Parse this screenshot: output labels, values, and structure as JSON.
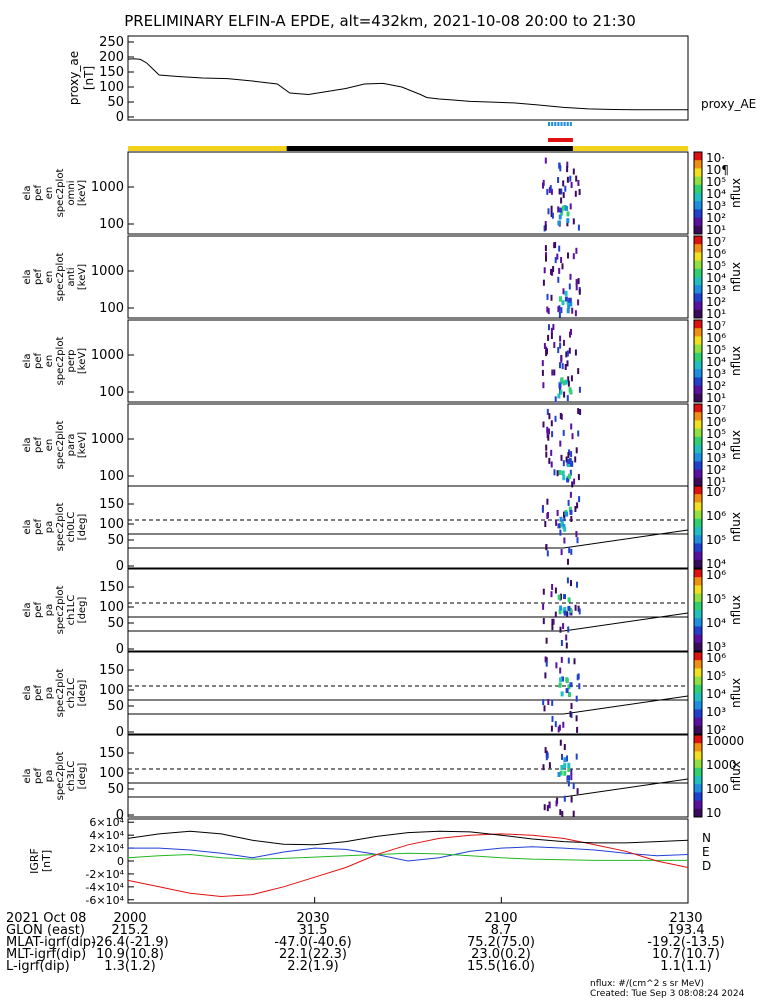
{
  "title": "PRELIMINARY ELFIN-A EPDE, alt=432km, 2021-10-08 20:00 to 21:30",
  "colors": {
    "ae_line": "#000000",
    "status_yellow": "#f2d21b",
    "status_black": "#000000",
    "bar_blue": "#1e8fe0",
    "bar_red": "#e01010",
    "N": "#1f3fd6",
    "E": "#22b822",
    "D": "#e01010",
    "total": "#000000"
  },
  "chart_data": [
    {
      "type": "line",
      "panel": "proxy_ae",
      "ylabel": [
        "proxy_ae",
        "[nT]"
      ],
      "yticks": [
        "0",
        "50",
        "100",
        "150",
        "200",
        "250"
      ],
      "ylim": [
        -10,
        270
      ],
      "legend": "proxy_AE",
      "x": [
        0,
        1,
        2,
        3,
        5,
        8,
        12,
        16,
        20,
        24,
        26,
        29,
        32,
        35,
        38,
        41,
        44,
        47,
        48,
        50,
        52,
        55,
        58,
        62,
        66,
        70,
        74,
        78,
        82,
        86,
        90
      ],
      "values": [
        193,
        194,
        192,
        180,
        140,
        135,
        130,
        128,
        120,
        110,
        80,
        75,
        85,
        95,
        110,
        112,
        100,
        75,
        65,
        60,
        57,
        52,
        50,
        47,
        40,
        32,
        27,
        25,
        24,
        24,
        24
      ]
    },
    {
      "type": "timeline",
      "panel": "status_bars",
      "blue_interval": [
        [
          67.5,
          71.5
        ]
      ],
      "red_interval": [
        [
          67.5,
          71.5
        ]
      ],
      "yellow_intervals": [
        [
          0,
          25.5
        ],
        [
          71.5,
          90
        ]
      ],
      "black_intervals": [
        [
          25.5,
          71.5
        ]
      ]
    },
    {
      "type": "heatmap",
      "panel": "omni",
      "ylabel": [
        "ela",
        "pef",
        "en",
        "spec2plot",
        "omni",
        "[keV]"
      ],
      "yticks": [
        "100",
        "1000"
      ],
      "colorbar": {
        "label": "nflux",
        "ticks": [
          "10·",
          "10¶",
          "10⁵",
          "10⁴",
          "10³",
          "10²",
          "10¹"
        ],
        "tick_exponents": [
          7,
          6,
          5,
          4,
          3,
          2,
          1
        ]
      }
    },
    {
      "type": "heatmap",
      "panel": "anti",
      "ylabel": [
        "ela",
        "pef",
        "en",
        "spec2plot",
        "anti",
        "[keV]"
      ],
      "yticks": [
        "100",
        "1000"
      ],
      "colorbar": {
        "label": "nflux",
        "tick_exponents": [
          7,
          6,
          5,
          4,
          3,
          2,
          1
        ]
      }
    },
    {
      "type": "heatmap",
      "panel": "perp",
      "ylabel": [
        "ela",
        "pef",
        "en",
        "spec2plot",
        "perp",
        "[keV]"
      ],
      "yticks": [
        "100",
        "1000"
      ],
      "colorbar": {
        "label": "nflux",
        "tick_exponents": [
          7,
          6,
          5,
          4,
          3,
          2,
          1
        ]
      }
    },
    {
      "type": "heatmap",
      "panel": "para",
      "ylabel": [
        "ela",
        "pef",
        "en",
        "spec2plot",
        "para",
        "[keV]"
      ],
      "yticks": [
        "100",
        "1000"
      ],
      "colorbar": {
        "label": "nflux",
        "tick_exponents": [
          7,
          6,
          5,
          4,
          3,
          2,
          1
        ]
      }
    },
    {
      "type": "heatmap",
      "panel": "ch0LC",
      "ylabel": [
        "ela",
        "pef",
        "pa",
        "spec2plot",
        "ch0LC",
        "[deg]"
      ],
      "yticks": [
        "0",
        "50",
        "100",
        "150"
      ],
      "colorbar": {
        "label": "nflux",
        "tick_exponents": [
          7,
          6,
          5,
          4
        ]
      }
    },
    {
      "type": "heatmap",
      "panel": "ch1LC",
      "ylabel": [
        "ela",
        "pef",
        "pa",
        "spec2plot",
        "ch1LC",
        "[deg]"
      ],
      "yticks": [
        "0",
        "50",
        "100",
        "150"
      ],
      "colorbar": {
        "label": "nflux",
        "tick_exponents": [
          6,
          5,
          4,
          3
        ]
      }
    },
    {
      "type": "heatmap",
      "panel": "ch2LC",
      "ylabel": [
        "ela",
        "pef",
        "pa",
        "spec2plot",
        "ch2LC",
        "[deg]"
      ],
      "yticks": [
        "0",
        "50",
        "100",
        "150"
      ],
      "colorbar": {
        "label": "nflux",
        "tick_exponents": [
          6,
          5,
          4,
          3,
          2
        ]
      }
    },
    {
      "type": "heatmap",
      "panel": "ch3LC",
      "ylabel": [
        "ela",
        "pef",
        "pa",
        "spec2plot",
        "ch3LC",
        "[deg]"
      ],
      "yticks": [
        "0",
        "50",
        "100",
        "150"
      ],
      "colorbar": {
        "label": "nflux",
        "ticks": [
          "10000",
          "1000",
          "100",
          "10"
        ]
      }
    },
    {
      "type": "line",
      "panel": "IGRF",
      "ylabel": [
        "IGRF",
        "[nT]"
      ],
      "yticks": [
        "6×10⁴",
        "4×10⁴",
        "2×10⁴",
        "0",
        "-2×10⁴",
        "-4×10⁴",
        "-6×10⁴"
      ],
      "ylim": [
        -65000,
        65000
      ],
      "legend": [
        "N",
        "E",
        "D"
      ],
      "x": [
        0,
        5,
        10,
        15,
        20,
        25,
        30,
        35,
        40,
        45,
        50,
        55,
        60,
        65,
        70,
        75,
        80,
        85,
        90
      ],
      "series": [
        {
          "name": "N",
          "values": [
            20000,
            20000,
            17000,
            12000,
            5000,
            14000,
            20000,
            18000,
            10000,
            0,
            5000,
            15000,
            20000,
            22000,
            20000,
            17000,
            12000,
            8000,
            10000
          ]
        },
        {
          "name": "E",
          "values": [
            5000,
            8000,
            10000,
            5000,
            3000,
            4000,
            6000,
            8000,
            10000,
            12000,
            11000,
            8000,
            5000,
            3000,
            2000,
            1000,
            1000,
            1000,
            1000
          ]
        },
        {
          "name": "D",
          "values": [
            -30000,
            -40000,
            -50000,
            -55000,
            -52000,
            -40000,
            -25000,
            -10000,
            10000,
            25000,
            35000,
            40000,
            42000,
            40000,
            35000,
            25000,
            15000,
            0,
            -10000
          ]
        },
        {
          "values": [
            35000,
            42000,
            46000,
            42000,
            32000,
            26000,
            25000,
            30000,
            38000,
            44000,
            46000,
            45000,
            40000,
            34000,
            30000,
            28000,
            28000,
            30000,
            32000
          ]
        }
      ]
    }
  ],
  "footer": {
    "rows": [
      {
        "label": "2021 Oct 08",
        "values": [
          "2000",
          "2030",
          "2100",
          "2130"
        ]
      },
      {
        "label": "GLON (east)",
        "values": [
          "215.2",
          "31.5",
          "8.7",
          "193.4"
        ]
      },
      {
        "label": "MLAT-igrf(dip)",
        "values": [
          "-26.4(-21.9)",
          "-47.0(-40.6)",
          "75.2(75.0)",
          "-19.2(-13.5)"
        ]
      },
      {
        "label": "MLT-igrf(dip)",
        "values": [
          "10.9(10.8)",
          "22.1(22.3)",
          "23.0(0.2)",
          "10.7(10.7)"
        ]
      },
      {
        "label": "L-igrf(dip)",
        "values": [
          "1.3(1.2)",
          "2.2(1.9)",
          "15.5(16.0)",
          "1.1(1.1)"
        ]
      }
    ],
    "units_note": "nflux: #/(cm^2 s sr MeV)",
    "created_note": "Created: Tue Sep  3 08:08:24 2024"
  }
}
